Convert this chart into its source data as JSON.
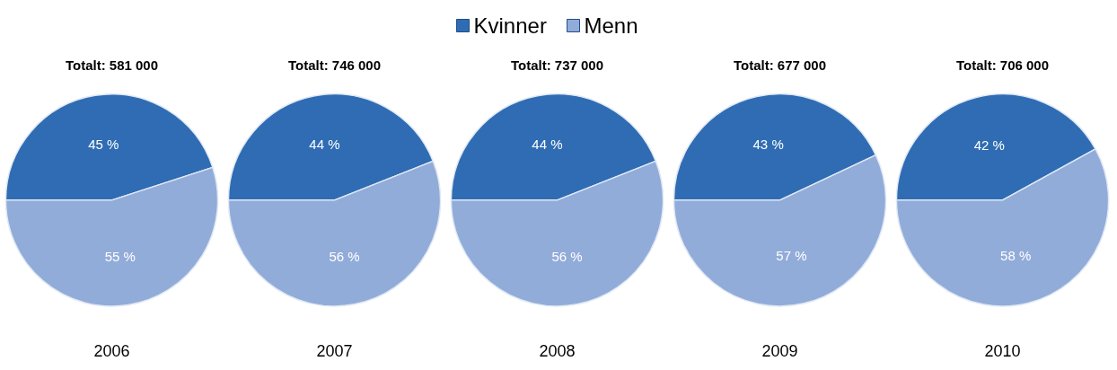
{
  "chart_data": [
    {
      "type": "pie",
      "title": "Totalt: 581 000",
      "xlabel": "2006",
      "categories": [
        "Kvinner",
        "Menn"
      ],
      "values": [
        45,
        55
      ],
      "colors": [
        "#2f6cb3",
        "#92acd9"
      ],
      "value_labels": [
        "45 %",
        "55 %"
      ],
      "legend": "top"
    },
    {
      "type": "pie",
      "title": "Totalt: 746 000",
      "xlabel": "2007",
      "categories": [
        null,
        null
      ],
      "values": [
        44,
        56
      ],
      "colors": [
        "#2f6cb3",
        "#92acd9"
      ],
      "value_labels": [
        "44 %",
        "56 %"
      ]
    },
    {
      "type": "pie",
      "title": "Totalt: 737 000",
      "xlabel": "2008",
      "categories": [
        null,
        null
      ],
      "values": [
        44,
        56
      ],
      "colors": [
        "#2f6cb3",
        "#92acd9"
      ],
      "value_labels": [
        "44 %",
        "56 %"
      ]
    },
    {
      "type": "pie",
      "title": "Totalt: 677 000",
      "xlabel": "2009",
      "categories": [
        null,
        null
      ],
      "values": [
        43,
        57
      ],
      "colors": [
        "#2f6cb3",
        "#92acd9"
      ],
      "value_labels": [
        "43 %",
        "57 %"
      ]
    },
    {
      "type": "pie",
      "title": "Totalt: 706 000",
      "xlabel": "2010",
      "categories": [
        null,
        null
      ],
      "values": [
        42,
        58
      ],
      "colors": [
        "#2f6cb3",
        "#92acd9"
      ],
      "value_labels": [
        "42 %",
        "58 %"
      ]
    }
  ]
}
